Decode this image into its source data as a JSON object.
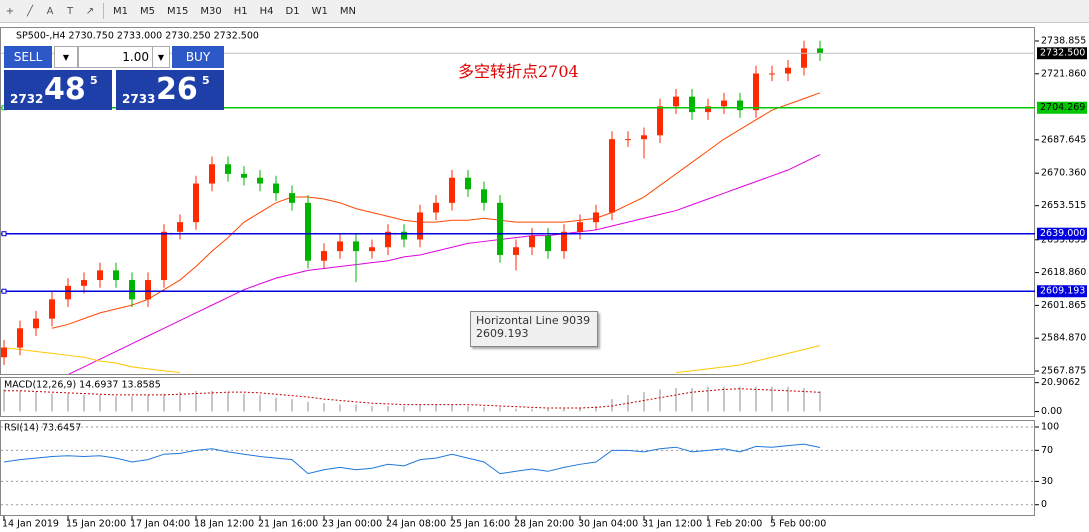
{
  "toolbar": {
    "buttons": [
      "M1",
      "M5",
      "M15",
      "M30",
      "H1",
      "H4",
      "D1",
      "W1",
      "MN"
    ]
  },
  "trade_panel": {
    "sell": "SELL",
    "lot": "1.00",
    "buy": "BUY",
    "sell_price": {
      "big": "2732",
      "main": "48",
      "sup": "5"
    },
    "buy_price": {
      "big": "2733",
      "main": "26",
      "sup": "5"
    }
  },
  "tooltip": {
    "title": "Horizontal Line 9039",
    "value": "2609.193"
  },
  "chart_data": [
    {
      "type": "candlestick",
      "title": "SP500-,H4  2730.750 2733.000 2730.250 2732.500",
      "annotation": "多空转折点2704",
      "categories": [
        "14 Jan 2019",
        null,
        null,
        null,
        "15 Jan 20:00",
        null,
        null,
        null,
        "17 Jan 04:00",
        null,
        null,
        null,
        "18 Jan 12:00",
        null,
        null,
        null,
        "21 Jan 16:00",
        null,
        null,
        null,
        "23 Jan 00:00",
        null,
        null,
        null,
        "24 Jan 08:00",
        null,
        null,
        null,
        "25 Jan 16:00",
        null,
        null,
        null,
        "28 Jan 20:00",
        null,
        null,
        null,
        "30 Jan 04:00",
        null,
        null,
        null,
        "31 Jan 12:00",
        null,
        null,
        null,
        "1 Feb 20:00",
        null,
        null,
        null,
        "5 Feb 00:00",
        null,
        null,
        null
      ],
      "open": [
        2575,
        2580,
        2590,
        2595,
        2605,
        2612,
        2615,
        2620,
        2615,
        2605,
        2615,
        2640,
        2645,
        2665,
        2675,
        2670,
        2668,
        2665,
        2660,
        2655,
        2625,
        2630,
        2635,
        2630,
        2632,
        2640,
        2636,
        2650,
        2655,
        2668,
        2662,
        2655,
        2628,
        2632,
        2638,
        2630,
        2640,
        2645,
        2650,
        2688,
        2688,
        2690,
        2705,
        2710,
        2702,
        2705,
        2708,
        2703,
        2722,
        2722,
        2725,
        2735
      ],
      "high": [
        2584,
        2594,
        2599,
        2609,
        2616,
        2619,
        2624,
        2624,
        2619,
        2619,
        2644,
        2649,
        2669,
        2679,
        2679,
        2674,
        2672,
        2669,
        2664,
        2659,
        2634,
        2639,
        2639,
        2636,
        2644,
        2644,
        2654,
        2659,
        2672,
        2672,
        2666,
        2659,
        2636,
        2642,
        2642,
        2644,
        2649,
        2654,
        2692,
        2692,
        2694,
        2709,
        2714,
        2714,
        2709,
        2712,
        2712,
        2726,
        2726,
        2729,
        2739,
        2739
      ],
      "low": [
        2571,
        2576,
        2586,
        2591,
        2601,
        2608,
        2611,
        2611,
        2601,
        2601,
        2611,
        2636,
        2641,
        2661,
        2666,
        2664,
        2661,
        2656,
        2651,
        2621,
        2621,
        2626,
        2614,
        2626,
        2628,
        2632,
        2632,
        2646,
        2651,
        2658,
        2651,
        2624,
        2620,
        2628,
        2626,
        2626,
        2636,
        2641,
        2646,
        2684,
        2678,
        2686,
        2701,
        2698,
        2698,
        2701,
        2699,
        2699,
        2718,
        2718,
        2721,
        2728.5
      ],
      "close": [
        2580,
        2590,
        2595,
        2605,
        2612,
        2615,
        2620,
        2615,
        2605,
        2615,
        2640,
        2645,
        2665,
        2675,
        2670,
        2668,
        2665,
        2660,
        2655,
        2625,
        2630,
        2635,
        2630,
        2632,
        2640,
        2636,
        2650,
        2655,
        2668,
        2662,
        2655,
        2628,
        2632,
        2638,
        2630,
        2640,
        2645,
        2650,
        2688,
        2688,
        2690,
        2705,
        2710,
        2702,
        2705,
        2708,
        2703,
        2722,
        2722,
        2725,
        2735,
        2732.5
      ],
      "up_color": "#ff2a00",
      "down_color": "#00b400",
      "series": [
        {
          "color": "#ff4500",
          "values": [
            null,
            null,
            null,
            2590,
            2592,
            2595,
            2598,
            2600,
            2602,
            2605,
            2610,
            2615,
            2622,
            2630,
            2637,
            2645,
            2650,
            2655,
            2658,
            2658,
            2657,
            2655,
            2652,
            2650,
            2648,
            2646,
            2645,
            2645,
            2646,
            2646,
            2647,
            2646,
            2645,
            2645,
            2645,
            2645,
            2646,
            2647,
            2650,
            2654,
            2658,
            2664,
            2670,
            2676,
            2682,
            2688,
            2693,
            2698,
            2703,
            2706,
            2709,
            2712
          ]
        },
        {
          "color": "#e000e0",
          "values": [
            null,
            null,
            null,
            null,
            2566,
            2570,
            2574,
            2578,
            2582,
            2586,
            2590,
            2594,
            2598,
            2602,
            2606,
            2610,
            2613,
            2616,
            2618,
            2620,
            2621,
            2622,
            2623,
            2624,
            2625,
            2627,
            2628,
            2630,
            2632,
            2634,
            2635,
            2636,
            2637,
            2638,
            2638,
            2639,
            2640,
            2641,
            2643,
            2645,
            2647,
            2649,
            2651,
            2654,
            2657,
            2660,
            2663,
            2666,
            2669,
            2672,
            2676,
            2680
          ]
        },
        {
          "color": "#ffc800",
          "values": [
            2580,
            2579,
            2578,
            2577,
            2576,
            2575,
            2573,
            2572,
            2570,
            2569,
            2568,
            2567,
            null,
            null,
            null,
            null,
            null,
            null,
            null,
            null,
            null,
            null,
            null,
            null,
            null,
            null,
            null,
            null,
            null,
            null,
            null,
            null,
            null,
            null,
            null,
            null,
            null,
            null,
            null,
            null,
            null,
            null,
            2567,
            2568,
            2569,
            2570,
            2571,
            2573,
            2575,
            2577,
            2579,
            2581
          ]
        }
      ],
      "hlines": [
        {
          "value": 2704.269,
          "label": "2704.269",
          "color": "#00c800"
        },
        {
          "value": 2639,
          "label": "2639.000",
          "color": "#0000e0"
        },
        {
          "value": 2609.193,
          "label": "2609.193",
          "color": "#0000e0"
        }
      ],
      "current_price": {
        "value": 2732.5,
        "label": "2732.500"
      },
      "ylim": [
        2565.8,
        2746.1
      ],
      "yticks": [
        2738.855,
        {
          "value": 2721.86,
          "label": "2721.860"
        },
        2687.645,
        {
          "value": 2670.36,
          "label": "2670.360"
        },
        2653.515,
        2635.855,
        {
          "value": 2618.86,
          "label": "2618.860"
        },
        2601.865,
        {
          "value": 2584.87,
          "label": "2584.870"
        },
        2567.875
      ]
    },
    {
      "type": "macd",
      "title": "MACD(12,26,9) 14.6937 13.8585",
      "ylim": [
        -4,
        25
      ],
      "yticks": [
        20.9062,
        {
          "value": 0,
          "label": "0.00"
        }
      ],
      "series": [
        {
          "style": "histogram",
          "color": "#b4b4b4",
          "values": [
            16,
            15,
            14,
            13,
            13,
            12,
            12,
            11,
            11,
            12,
            13,
            14,
            15,
            15,
            14,
            13,
            12,
            10,
            9,
            7,
            6,
            5,
            5,
            4,
            4,
            4,
            5,
            5,
            5,
            4,
            3,
            3,
            2,
            2,
            2,
            2,
            3,
            4,
            9,
            12,
            14,
            16,
            17,
            17,
            18,
            18,
            18,
            18,
            18,
            18,
            17,
            14.6937
          ]
        },
        {
          "style": "dotted",
          "color": "#c00000",
          "values": [
            15,
            15,
            14.5,
            14,
            13.5,
            13,
            12.5,
            12,
            12,
            12,
            12,
            12.5,
            13,
            13.5,
            14,
            14,
            13.5,
            12.5,
            11.5,
            10.5,
            9,
            8,
            7,
            6,
            5.5,
            5,
            5,
            5,
            5,
            5,
            4.5,
            4,
            3.5,
            3,
            2.5,
            2.5,
            2.5,
            3,
            4,
            6,
            8,
            10,
            12,
            14,
            15,
            16,
            16.5,
            16,
            15.5,
            15,
            14.5,
            13.8585
          ]
        }
      ]
    },
    {
      "type": "line",
      "title": "RSI(14) 73.6457",
      "ylim": [
        -14.5,
        109
      ],
      "yticks": [
        100,
        70,
        30,
        0
      ],
      "grid": true,
      "series": [
        {
          "color": "#1e78dc",
          "values": [
            55,
            58,
            60,
            62,
            63,
            62,
            63,
            60,
            55,
            58,
            65,
            66,
            70,
            72,
            68,
            65,
            62,
            60,
            58,
            40,
            45,
            48,
            45,
            47,
            52,
            50,
            58,
            60,
            65,
            60,
            55,
            40,
            43,
            46,
            43,
            48,
            52,
            55,
            70,
            70,
            68,
            72,
            74,
            68,
            70,
            72,
            68,
            75,
            74,
            76,
            78,
            73.6457
          ]
        }
      ]
    }
  ]
}
